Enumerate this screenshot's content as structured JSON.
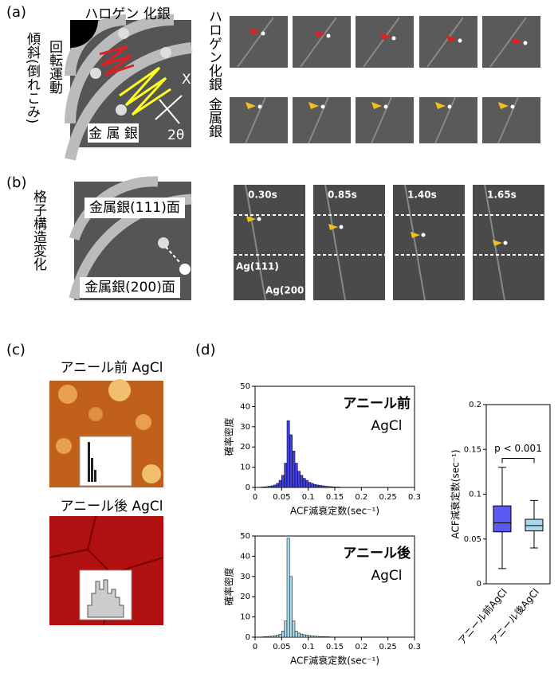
{
  "panels": {
    "a": {
      "label": "(a)",
      "top": "ハロゲン 化銀",
      "side1": "傾斜(倒れこみ)",
      "side2": "回転運動",
      "x": "X",
      "angle": "2θ",
      "metal": "金 属 銀",
      "row1": "ハロゲン化銀",
      "row2": "金属銀"
    },
    "b": {
      "label": "(b)",
      "side": "格子構造変化",
      "top": "金属銀(111)面",
      "bottom": "金属銀(200)面",
      "times": [
        "0.30s",
        "0.85s",
        "1.40s",
        "1.65s"
      ],
      "ag111": "Ag(111)",
      "ag200": "Ag(200)"
    },
    "c": {
      "label": "(c)",
      "before": "アニール前 AgCl",
      "after": "アニール後 AgCl"
    },
    "d": {
      "label": "(d)"
    }
  },
  "chart_data": [
    {
      "type": "histogram",
      "annotation": "アニール前",
      "annotation2": "AgCl",
      "xlabel": "ACF減衰定数(sec⁻¹)",
      "ylabel": "確率密度",
      "color": "#4040e0",
      "bins": [
        0,
        0.005,
        0.01,
        0.015,
        0.02,
        0.025,
        0.03,
        0.035,
        0.04,
        0.045,
        0.05,
        0.055,
        0.06,
        0.065,
        0.07,
        0.075,
        0.08,
        0.085,
        0.09,
        0.095,
        0.1,
        0.105,
        0.11,
        0.115,
        0.12,
        0.125,
        0.13,
        0.135,
        0.14,
        0.145,
        0.15,
        0.155,
        0.16,
        0.165,
        0.17,
        0.175,
        0.18,
        0.185,
        0.19,
        0.195,
        0.2
      ],
      "values": [
        0,
        0.1,
        0.2,
        0.3,
        0.4,
        0.6,
        0.8,
        1.2,
        2,
        3.5,
        6,
        12,
        33,
        26,
        18,
        12,
        8,
        6,
        4.5,
        3.5,
        2.5,
        2,
        1.5,
        1.2,
        1,
        0.8,
        0.6,
        0.5,
        0.4,
        0.3,
        0.2,
        0.2,
        0.1,
        0.1,
        0.1,
        0,
        0,
        0,
        0,
        0
      ],
      "xlim": [
        0,
        0.3
      ],
      "xticks": [
        0,
        0.05,
        0.1,
        0.15,
        0.2,
        0.25,
        0.3
      ],
      "ylim": [
        0,
        50
      ],
      "yticks": [
        0,
        10,
        20,
        30,
        40,
        50
      ]
    },
    {
      "type": "histogram",
      "annotation": "アニール後",
      "annotation2": "AgCl",
      "xlabel": "ACF減衰定数(sec⁻¹)",
      "ylabel": "確率密度",
      "color": "#a8d8ea",
      "bins": [
        0,
        0.005,
        0.01,
        0.015,
        0.02,
        0.025,
        0.03,
        0.035,
        0.04,
        0.045,
        0.05,
        0.055,
        0.06,
        0.065,
        0.07,
        0.075,
        0.08,
        0.085,
        0.09,
        0.095,
        0.1,
        0.105,
        0.11,
        0.115,
        0.12,
        0.125,
        0.13,
        0.135,
        0.14,
        0.145,
        0.15,
        0.155,
        0.16,
        0.165,
        0.17,
        0.175,
        0.18,
        0.185,
        0.19,
        0.195,
        0.2
      ],
      "values": [
        0,
        0,
        0.1,
        0.2,
        0.3,
        0.4,
        0.5,
        0.7,
        1,
        1.5,
        3,
        8,
        49,
        30,
        8,
        3,
        2,
        1.5,
        1.2,
        1,
        0.8,
        0.6,
        0.5,
        0.4,
        0.3,
        0.3,
        0.2,
        0.2,
        0.1,
        0.1,
        0.1,
        0.1,
        0,
        0,
        0,
        0,
        0,
        0,
        0,
        0
      ],
      "xlim": [
        0,
        0.3
      ],
      "xticks": [
        0,
        0.05,
        0.1,
        0.15,
        0.2,
        0.25,
        0.3
      ],
      "ylim": [
        0,
        50
      ],
      "yticks": [
        0,
        10,
        20,
        30,
        40,
        50
      ]
    },
    {
      "type": "box",
      "ylabel": "ACF減衰定数(sec⁻¹)",
      "annotation": "p < 0.001",
      "categories": [
        "アニール前AgCl",
        "アニール後AgCl"
      ],
      "colors": [
        "#5a5af0",
        "#a8d8ea"
      ],
      "boxes": [
        {
          "min": 0.017,
          "q1": 0.058,
          "median": 0.068,
          "q3": 0.087,
          "max": 0.13
        },
        {
          "min": 0.04,
          "q1": 0.059,
          "median": 0.065,
          "q3": 0.072,
          "max": 0.093
        }
      ],
      "ylim": [
        0,
        0.2
      ],
      "yticks": [
        0,
        0.05,
        0.1,
        0.15,
        0.2
      ]
    }
  ]
}
